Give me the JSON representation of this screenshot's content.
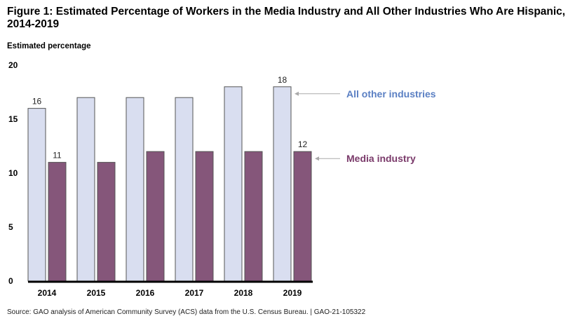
{
  "chart_data": {
    "type": "bar",
    "title": "Figure 1: Estimated Percentage of Workers in the Media Industry and All Other Industries Who Are Hispanic, 2014-2019",
    "ylabel": "Estimated percentage",
    "xlabel": "",
    "ylim": [
      0,
      20
    ],
    "yticks": [
      0,
      5,
      10,
      15,
      20
    ],
    "grid": false,
    "legend_placement": "right (arrow labels)",
    "categories": [
      "2014",
      "2015",
      "2016",
      "2017",
      "2018",
      "2019"
    ],
    "series": [
      {
        "name": "All other industries",
        "values": [
          16,
          17,
          17,
          17,
          18,
          18
        ],
        "color": "#d9def0",
        "labeled": {
          "0": "16",
          "5": "18"
        }
      },
      {
        "name": "Media industry",
        "values": [
          11,
          11,
          12,
          12,
          12,
          12
        ],
        "color": "#85567a",
        "labeled": {
          "0": "11",
          "5": "12"
        }
      }
    ],
    "legend_colors": [
      "#5a7fc3",
      "#7a3a6a"
    ],
    "source": "Source: GAO analysis of American Community Survey (ACS) data from the U.S. Census Bureau.  |  GAO-21-105322"
  }
}
